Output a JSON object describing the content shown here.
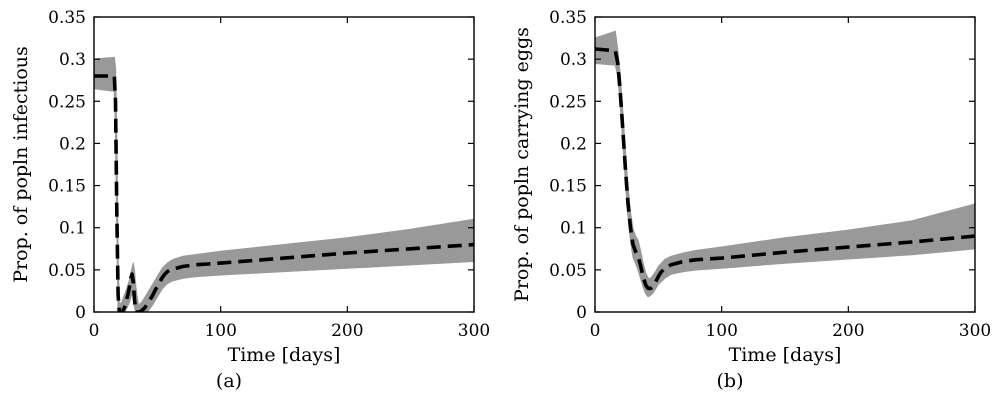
{
  "chart_data": [
    {
      "type": "line",
      "caption": "(a)",
      "xlabel": "Time [days]",
      "ylabel": "Prop. of popln infectious",
      "xlim": [
        0,
        300
      ],
      "ylim": [
        0,
        0.35
      ],
      "xticks": [
        0,
        100,
        200,
        300
      ],
      "yticks": [
        0,
        0.05,
        0.1,
        0.15,
        0.2,
        0.25,
        0.3,
        0.35
      ],
      "grid": false,
      "series": [
        {
          "style": "dashed",
          "color": "#000000",
          "x": [
            0,
            16,
            17,
            18,
            19,
            20,
            21,
            22,
            23,
            24,
            25,
            26,
            27,
            28,
            29,
            30,
            31,
            32,
            33,
            34,
            35,
            36,
            38,
            40,
            42,
            44,
            46,
            48,
            50,
            52,
            54,
            56,
            58,
            60,
            65,
            70,
            75,
            80,
            90,
            100,
            150,
            200,
            250,
            300
          ],
          "y": [
            0.28,
            0.28,
            0.25,
            0.12,
            0.02,
            0.0,
            0.0,
            0.0,
            0.002,
            0.005,
            0.01,
            0.016,
            0.022,
            0.03,
            0.04,
            0.045,
            0.035,
            0.015,
            0.0,
            0.0,
            0.0,
            0.0,
            0.002,
            0.005,
            0.009,
            0.014,
            0.019,
            0.025,
            0.03,
            0.036,
            0.041,
            0.045,
            0.048,
            0.05,
            0.052,
            0.054,
            0.055,
            0.056,
            0.057,
            0.058,
            0.064,
            0.07,
            0.075,
            0.08
          ]
        },
        {
          "style": "band",
          "color": "#999999",
          "x": [
            0,
            16,
            17,
            18,
            19,
            20,
            21,
            22,
            24,
            26,
            28,
            30,
            31,
            32,
            33,
            35,
            38,
            42,
            46,
            50,
            54,
            58,
            62,
            70,
            80,
            100,
            150,
            200,
            250,
            300
          ],
          "y_low": [
            0.265,
            0.262,
            0.22,
            0.1,
            0.005,
            0.0,
            0.0,
            0.0,
            0.0,
            0.005,
            0.012,
            0.022,
            0.018,
            0.005,
            0.0,
            0.0,
            0.0,
            0.0,
            0.008,
            0.018,
            0.028,
            0.034,
            0.037,
            0.04,
            0.042,
            0.044,
            0.048,
            0.052,
            0.056,
            0.06
          ],
          "y_high": [
            0.3,
            0.302,
            0.29,
            0.2,
            0.06,
            0.01,
            0.01,
            0.012,
            0.02,
            0.028,
            0.038,
            0.052,
            0.058,
            0.048,
            0.03,
            0.008,
            0.012,
            0.022,
            0.032,
            0.042,
            0.052,
            0.058,
            0.062,
            0.066,
            0.068,
            0.072,
            0.08,
            0.088,
            0.098,
            0.11
          ]
        }
      ]
    },
    {
      "type": "line",
      "caption": "(b)",
      "xlabel": "Time [days]",
      "ylabel": "Prop. of popln carrying eggs",
      "xlim": [
        0,
        300
      ],
      "ylim": [
        0,
        0.35
      ],
      "xticks": [
        0,
        100,
        200,
        300
      ],
      "yticks": [
        0,
        0.05,
        0.1,
        0.15,
        0.2,
        0.25,
        0.3,
        0.35
      ],
      "grid": false,
      "series": [
        {
          "style": "dashed",
          "color": "#000000",
          "x": [
            0,
            16,
            18,
            20,
            22,
            24,
            26,
            28,
            30,
            32,
            34,
            36,
            38,
            40,
            42,
            44,
            46,
            48,
            50,
            52,
            55,
            60,
            65,
            70,
            80,
            100,
            150,
            200,
            250,
            300
          ],
          "y": [
            0.312,
            0.31,
            0.295,
            0.26,
            0.215,
            0.17,
            0.13,
            0.1,
            0.08,
            0.072,
            0.066,
            0.055,
            0.042,
            0.032,
            0.028,
            0.028,
            0.031,
            0.036,
            0.042,
            0.047,
            0.052,
            0.056,
            0.058,
            0.06,
            0.062,
            0.064,
            0.071,
            0.077,
            0.083,
            0.09
          ]
        },
        {
          "style": "band",
          "color": "#999999",
          "x": [
            0,
            16,
            18,
            20,
            22,
            24,
            26,
            28,
            30,
            32,
            34,
            36,
            38,
            40,
            42,
            44,
            46,
            48,
            50,
            55,
            60,
            70,
            80,
            100,
            150,
            200,
            250,
            300
          ],
          "y_low": [
            0.295,
            0.293,
            0.28,
            0.245,
            0.2,
            0.155,
            0.115,
            0.085,
            0.065,
            0.058,
            0.05,
            0.04,
            0.03,
            0.022,
            0.018,
            0.02,
            0.023,
            0.028,
            0.033,
            0.04,
            0.045,
            0.048,
            0.05,
            0.052,
            0.058,
            0.063,
            0.068,
            0.075
          ],
          "y_high": [
            0.325,
            0.333,
            0.31,
            0.28,
            0.235,
            0.19,
            0.15,
            0.118,
            0.098,
            0.09,
            0.085,
            0.072,
            0.058,
            0.046,
            0.04,
            0.04,
            0.044,
            0.048,
            0.054,
            0.062,
            0.066,
            0.07,
            0.073,
            0.077,
            0.088,
            0.097,
            0.108,
            0.128
          ]
        }
      ]
    }
  ]
}
